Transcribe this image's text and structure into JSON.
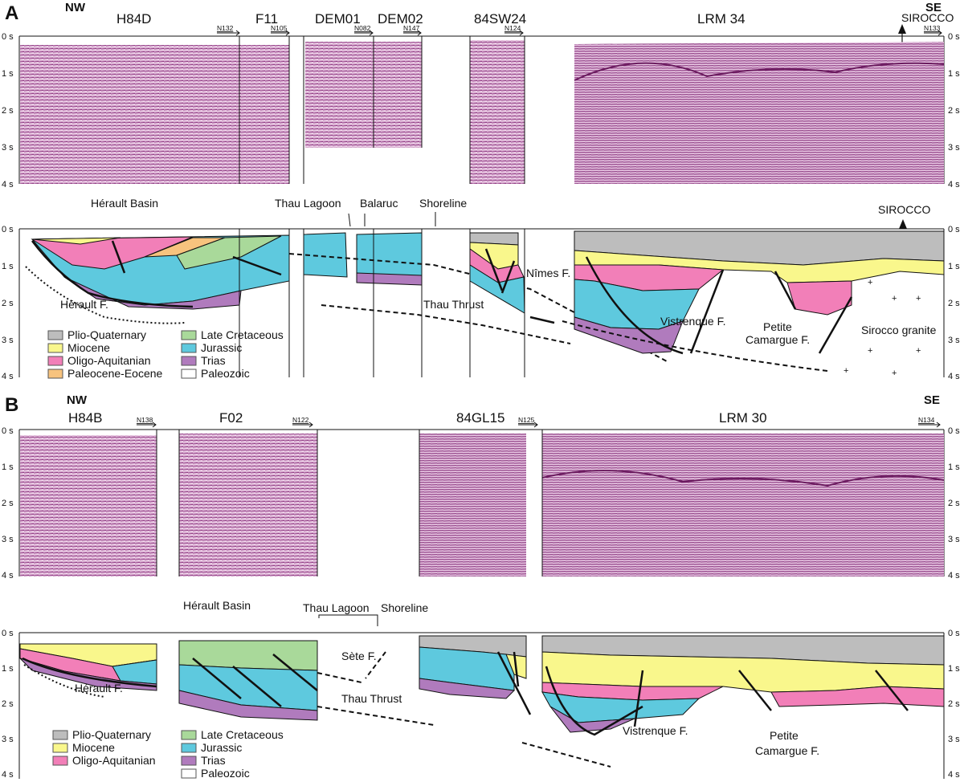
{
  "panels": [
    {
      "letter": "A",
      "dir_left": "NW",
      "dir_right": "SE",
      "lines": [
        "H84D",
        "F11",
        "DEM01",
        "DEM02",
        "84SW24",
        "LRM 34"
      ],
      "directions": [
        "N132",
        "N105",
        "N082",
        "N147",
        "N124",
        "N133"
      ],
      "well": "SIROCCO",
      "seismic_ticks": [
        "0 s",
        "1 s",
        "2 s",
        "3 s",
        "4 s"
      ],
      "interp_ticks": [
        "0 s",
        "1 s",
        "2 s",
        "3 s",
        "4 s"
      ],
      "labels": {
        "herault_basin": "Hérault Basin",
        "thau_lagoon": "Thau Lagoon",
        "balaruc": "Balaruc",
        "shoreline": "Shoreline",
        "sirocco": "SIROCCO",
        "herault_fault": "Hérault  F.",
        "nimes_fault": "Nîmes F.",
        "thau_thrust": "Thau Thrust",
        "vistrenque_fault": "Vistrenque F.",
        "petite": "Petite",
        "camargue_fault": "Camargue F.",
        "sirocco_granite": "Sirocco granite"
      },
      "legend": [
        {
          "label": "Plio-Quaternary",
          "color": "#bdbdbd"
        },
        {
          "label": "Miocene",
          "color": "#f9f78c"
        },
        {
          "label": "Oligo-Aquitanian",
          "color": "#f27fb8"
        },
        {
          "label": "Paleocene-Eocene",
          "color": "#f7c37e"
        },
        {
          "label": "Late Cretaceous",
          "color": "#a9d99a"
        },
        {
          "label": "Jurassic",
          "color": "#5ec9de"
        },
        {
          "label": "Trias",
          "color": "#b07bbd"
        },
        {
          "label": "Paleozoic",
          "color": "#ffffff"
        }
      ]
    },
    {
      "letter": "B",
      "dir_left": "NW",
      "dir_right": "SE",
      "lines": [
        "H84B",
        "F02",
        "84GL15",
        "LRM 30"
      ],
      "directions": [
        "N138",
        "N122",
        "N125",
        "N134"
      ],
      "seismic_ticks": [
        "0 s",
        "1 s",
        "2 s",
        "3 s",
        "4 s"
      ],
      "interp_ticks": [
        "0 s",
        "1 s",
        "2 s",
        "3 s",
        "4 s"
      ],
      "labels": {
        "herault_basin": "Hérault Basin",
        "thau_lagoon": "Thau Lagoon",
        "shoreline": "Shoreline",
        "sete_fault": "Sète F.",
        "herault_fault": "Hérault  F.",
        "thau_thrust": "Thau Thrust",
        "vistrenque_fault": "Vistrenque F.",
        "petite": "Petite",
        "camargue_fault": "Camargue F."
      },
      "legend": [
        {
          "label": "Plio-Quaternary",
          "color": "#bdbdbd"
        },
        {
          "label": "Miocene",
          "color": "#f9f78c"
        },
        {
          "label": "Oligo-Aquitanian",
          "color": "#f27fb8"
        },
        {
          "label": "Late Cretaceous",
          "color": "#a9d99a"
        },
        {
          "label": "Jurassic",
          "color": "#5ec9de"
        },
        {
          "label": "Trias",
          "color": "#b07bbd"
        },
        {
          "label": "Paleozoic",
          "color": "#ffffff"
        }
      ]
    }
  ]
}
